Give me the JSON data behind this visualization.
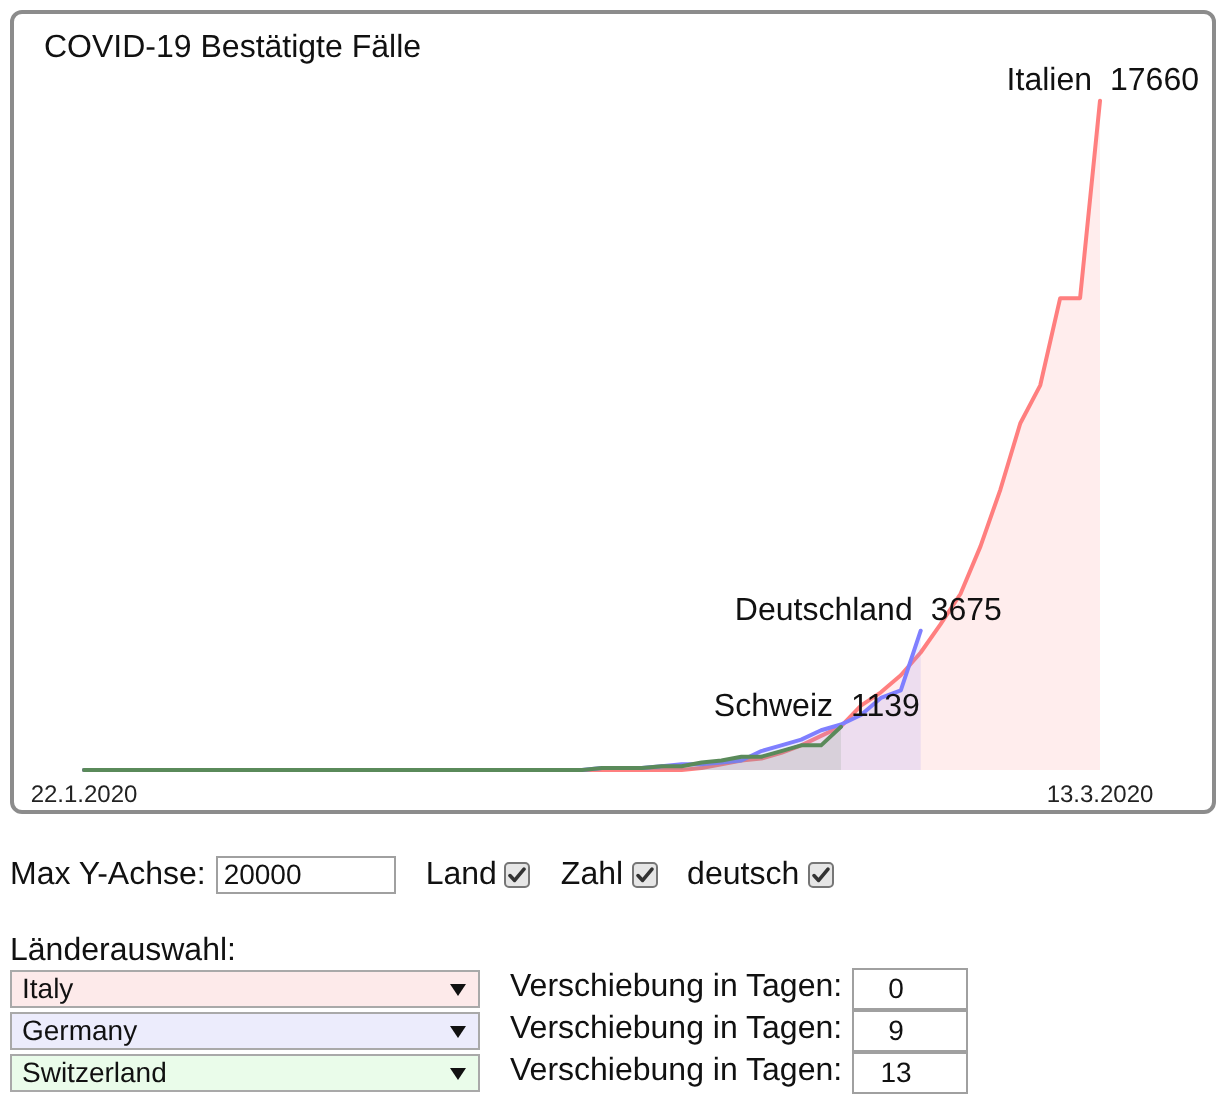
{
  "chart_data": [
    {
      "type": "area",
      "title": "COVID-19 Bestätigte Fälle",
      "xlim": [
        "2020-01-22",
        "2020-03-13"
      ],
      "xticks": [
        {
          "value": "2020-01-22",
          "label": "22.1.2020"
        },
        {
          "value": "2020-03-13",
          "label": "13.3.2020"
        }
      ],
      "ylim": [
        0,
        20000
      ],
      "tick_labels": "x",
      "grid": false,
      "legend": false,
      "marker": "none",
      "series": [
        {
          "name": "Italien",
          "color": "#ff7f7f",
          "x": [
            "2020-01-22",
            "2020-02-21",
            "2020-02-22",
            "2020-02-23",
            "2020-02-24",
            "2020-02-25",
            "2020-02-26",
            "2020-02-27",
            "2020-02-28",
            "2020-02-29",
            "2020-03-01",
            "2020-03-02",
            "2020-03-03",
            "2020-03-04",
            "2020-03-05",
            "2020-03-06",
            "2020-03-07",
            "2020-03-08",
            "2020-03-09",
            "2020-03-10",
            "2020-03-11",
            "2020-03-12",
            "2020-03-13"
          ],
          "values": [
            0,
            0,
            50,
            150,
            250,
            300,
            450,
            650,
            900,
            1150,
            1700,
            2050,
            2500,
            3100,
            3850,
            4650,
            5900,
            7400,
            9150,
            10150,
            12450,
            12450,
            17660
          ],
          "value_labels": [
            null,
            null,
            null,
            null,
            null,
            null,
            null,
            null,
            null,
            null,
            null,
            null,
            null,
            null,
            null,
            null,
            null,
            null,
            null,
            null,
            null,
            null,
            "17660"
          ]
        },
        {
          "name": "Deutschland",
          "color": "#7f7fff",
          "x": [
            "2020-01-22",
            "2020-02-16",
            "2020-02-17",
            "2020-02-18",
            "2020-02-19",
            "2020-02-20",
            "2020-02-21",
            "2020-02-22",
            "2020-02-23",
            "2020-02-24",
            "2020-02-25",
            "2020-02-26",
            "2020-02-27",
            "2020-02-28",
            "2020-02-29",
            "2020-03-01",
            "2020-03-02",
            "2020-03-03",
            "2020-03-04"
          ],
          "values": [
            0,
            0,
            50,
            50,
            50,
            100,
            150,
            150,
            200,
            250,
            500,
            650,
            800,
            1050,
            1200,
            1450,
            1900,
            2100,
            3675
          ],
          "value_labels": [
            null,
            null,
            null,
            null,
            null,
            null,
            null,
            null,
            null,
            null,
            null,
            null,
            null,
            null,
            null,
            null,
            null,
            null,
            "3675"
          ]
        },
        {
          "name": "Schweiz",
          "color": "#5a8a5a",
          "x": [
            "2020-01-22",
            "2020-02-16",
            "2020-02-17",
            "2020-02-18",
            "2020-02-19",
            "2020-02-20",
            "2020-02-21",
            "2020-02-22",
            "2020-02-23",
            "2020-02-24",
            "2020-02-25",
            "2020-02-26",
            "2020-02-27",
            "2020-02-28",
            "2020-02-29"
          ],
          "values": [
            0,
            0,
            50,
            50,
            50,
            100,
            100,
            200,
            250,
            350,
            350,
            500,
            650,
            650,
            1139
          ],
          "value_labels": [
            null,
            null,
            null,
            null,
            null,
            null,
            null,
            null,
            null,
            null,
            null,
            null,
            null,
            null,
            "1139"
          ]
        }
      ]
    },
    {
      "type": "other",
      "annotations": [
        "Max Y-Achse:",
        "20000",
        "Land",
        "Zahl",
        "deutsch",
        "Länderauswahl:",
        "Italy",
        "Verschiebung in Tagen:",
        "0",
        "Germany",
        "Verschiebung in Tagen:",
        "9",
        "Switzerland",
        "Verschiebung in Tagen:",
        "13"
      ],
      "colors": [
        "#fdeaea",
        "#ececfc",
        "#eafcea"
      ]
    }
  ]
}
